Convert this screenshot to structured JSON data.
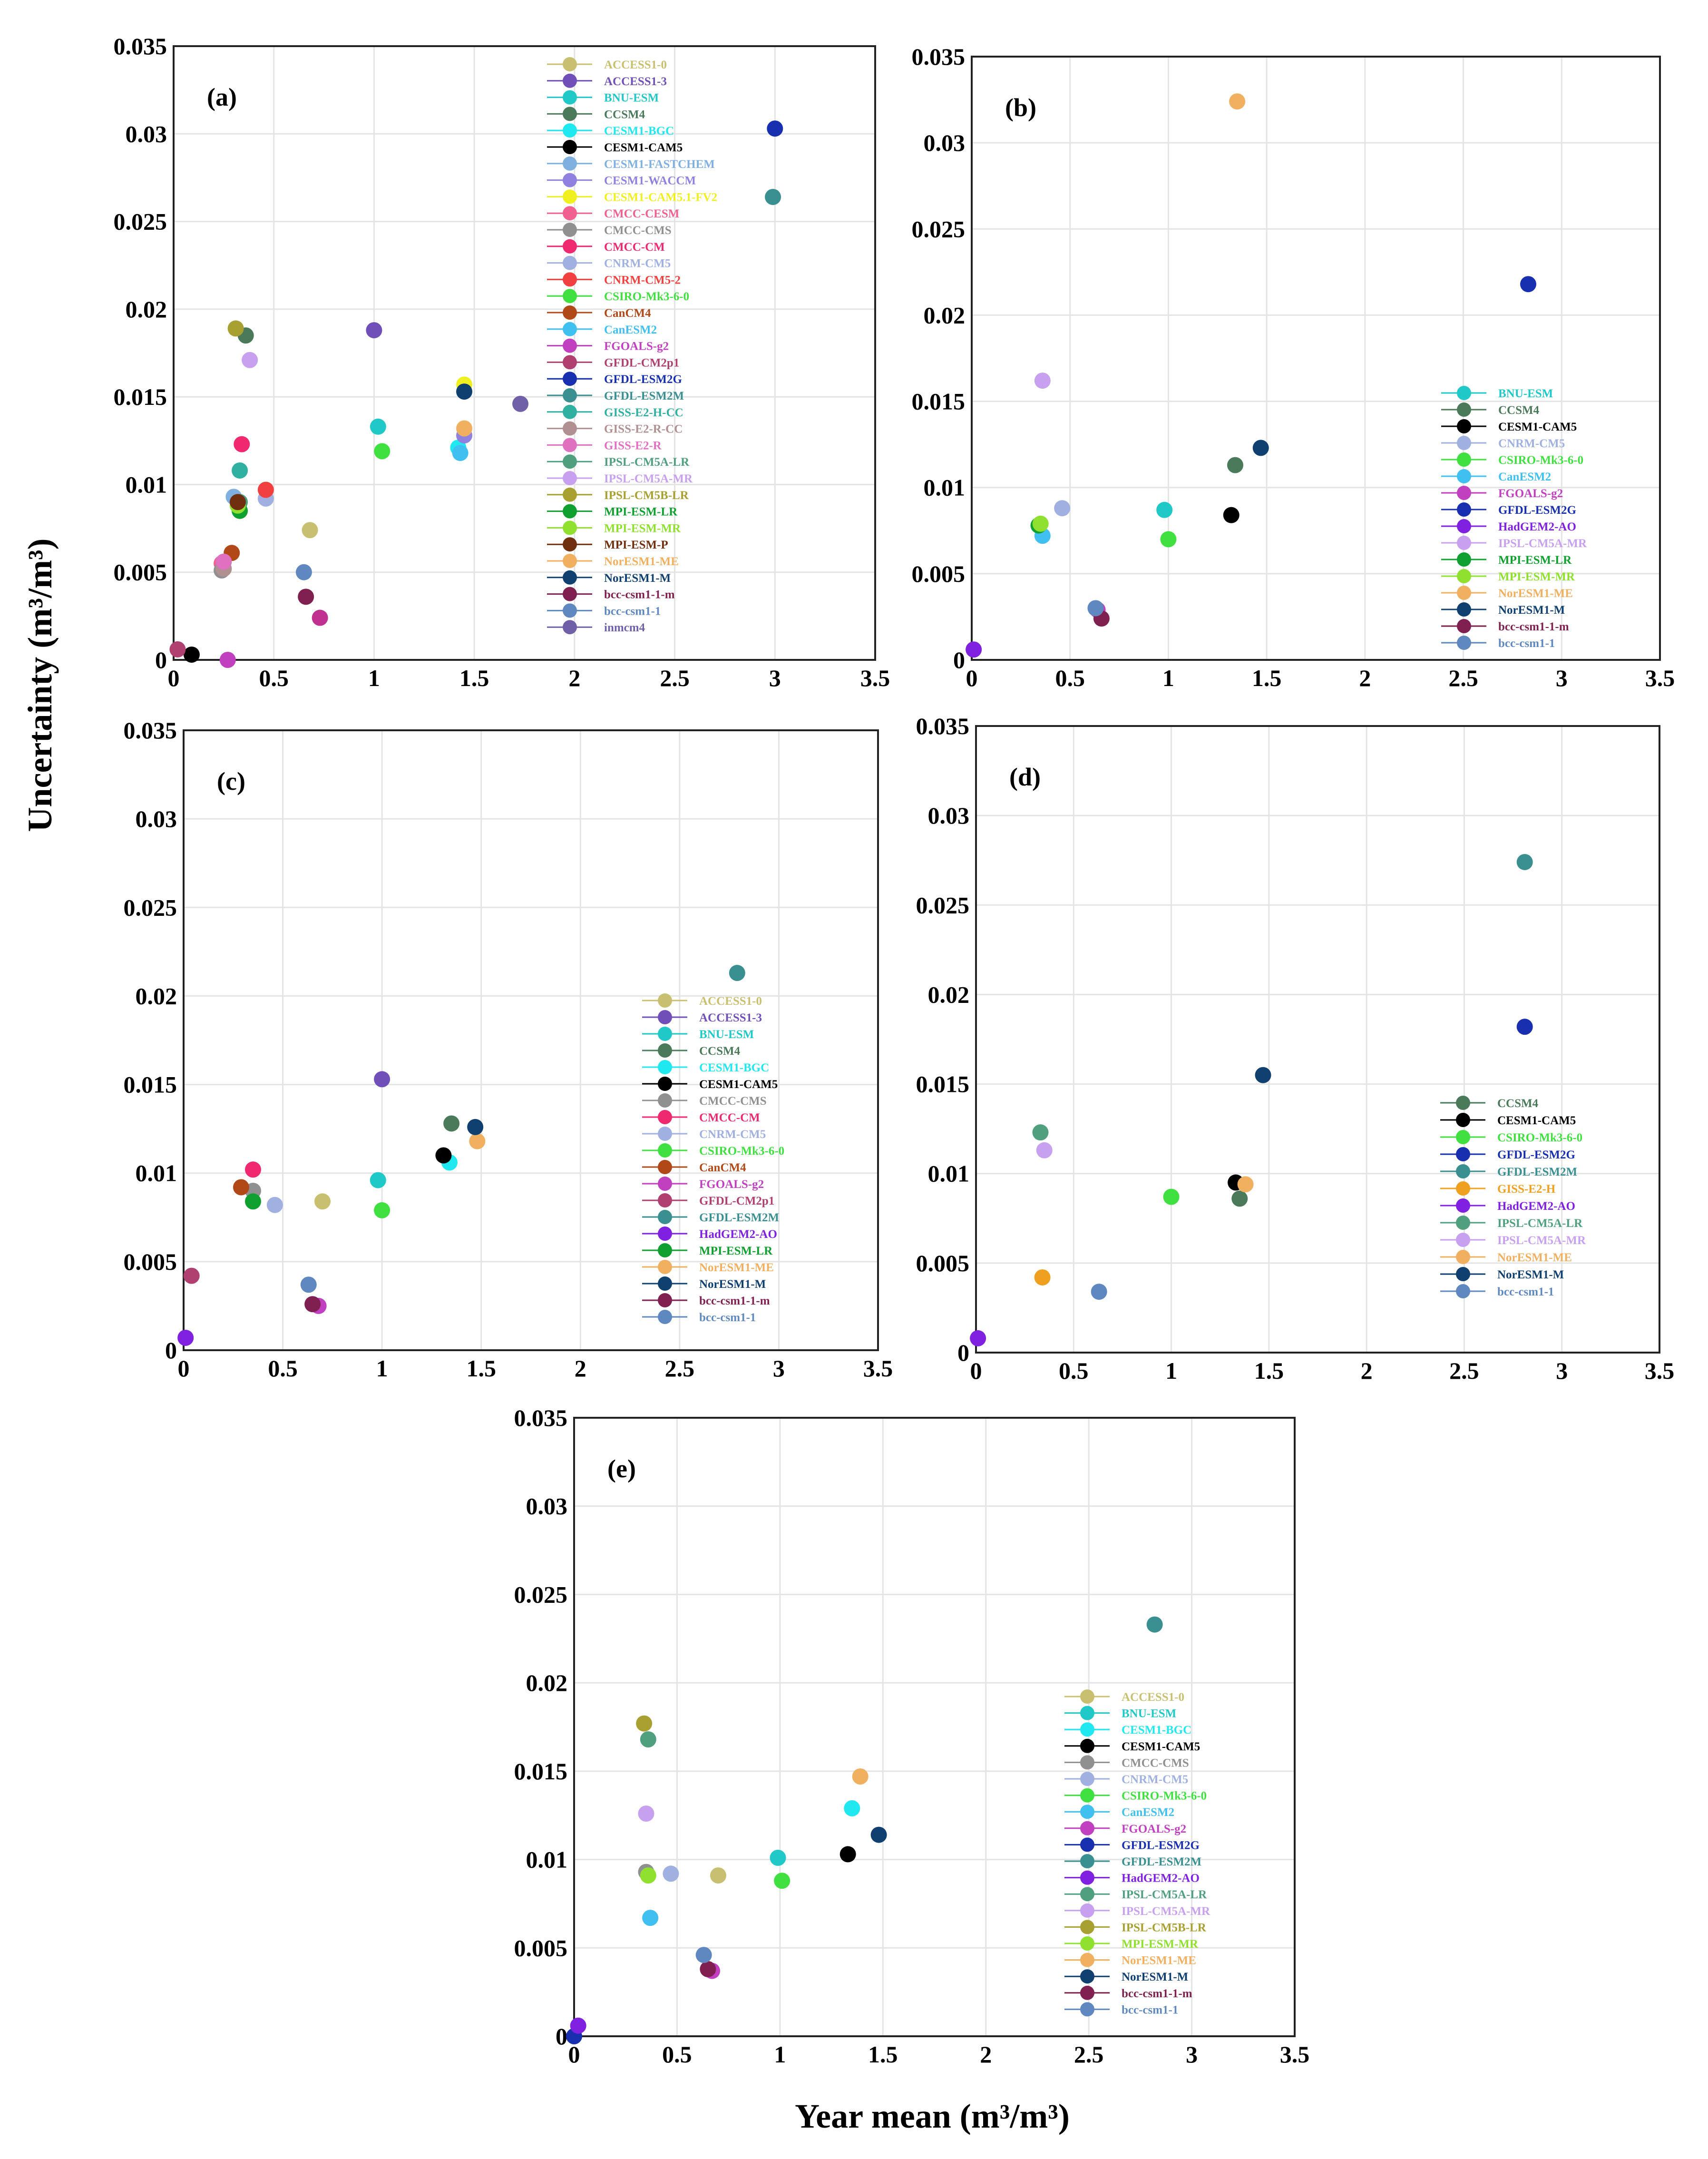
{
  "figure": {
    "ylabel": "Uncertainty (m³/m³)",
    "xlabel": "Year mean (m³/m³)"
  },
  "chart_data": [
    {
      "type": "scatter",
      "panel_label": "(a)",
      "xlim": [
        0,
        3.5
      ],
      "ylim": [
        0,
        0.035
      ],
      "xticks": [
        "0",
        "0.5",
        "1",
        "1.5",
        "2",
        "2.5",
        "3",
        "3.5"
      ],
      "yticks": [
        "0",
        "0.005",
        "0.01",
        "0.015",
        "0.02",
        "0.025",
        "0.03",
        "0.035"
      ],
      "grid": true,
      "legend_position": "top-right",
      "series": [
        {
          "name": "ACCESS1-0",
          "color": "#c8c070",
          "x": 0.68,
          "y": 0.0074
        },
        {
          "name": "ACCESS1-3",
          "color": "#7050b8",
          "x": 1.0,
          "y": 0.0188
        },
        {
          "name": "BNU-ESM",
          "color": "#20c8c8",
          "x": 1.02,
          "y": 0.0133
        },
        {
          "name": "CCSM4",
          "color": "#4a7a5a",
          "x": 0.36,
          "y": 0.0185
        },
        {
          "name": "CESM1-BGC",
          "color": "#20e8f0",
          "x": 1.42,
          "y": 0.0121
        },
        {
          "name": "CESM1-CAM5",
          "color": "#000000",
          "x": 0.09,
          "y": 0.0003
        },
        {
          "name": "CESM1-FASTCHEM",
          "color": "#80b0e0",
          "x": 0.3,
          "y": 0.0093
        },
        {
          "name": "CESM1-WACCM",
          "color": "#9080e0",
          "x": 1.45,
          "y": 0.0128
        },
        {
          "name": "CESM1-CAM5.1-FV2",
          "color": "#f0f020",
          "x": 1.45,
          "y": 0.0157
        },
        {
          "name": "CMCC-CESM",
          "color": "#f06090",
          "x": 0.24,
          "y": 0.0055
        },
        {
          "name": "CMCC-CMS",
          "color": "#909090",
          "x": 0.24,
          "y": 0.0051
        },
        {
          "name": "CMCC-CM",
          "color": "#f02870",
          "x": 0.34,
          "y": 0.0123
        },
        {
          "name": "CNRM-CM5",
          "color": "#a0b0e0",
          "x": 0.46,
          "y": 0.0092
        },
        {
          "name": "CNRM-CM5-2",
          "color": "#f04040",
          "x": 0.46,
          "y": 0.0097
        },
        {
          "name": "CSIRO-Mk3-6-0",
          "color": "#40e040",
          "x": 1.04,
          "y": 0.0119
        },
        {
          "name": "CanCM4",
          "color": "#b04818",
          "x": 0.29,
          "y": 0.0061
        },
        {
          "name": "CanESM2",
          "color": "#40c0f0",
          "x": 1.43,
          "y": 0.0118
        },
        {
          "name": "FGOALS-g2",
          "color": "#c040c0",
          "x": 0.27,
          "y": 0.0
        },
        {
          "name": "GFDL-CM2p1",
          "color": "#b04070",
          "x": 0.02,
          "y": 0.0006
        },
        {
          "name": "GFDL-ESM2G",
          "color": "#1830b0",
          "x": 3.0,
          "y": 0.0303
        },
        {
          "name": "GFDL-ESM2M",
          "color": "#3a9090",
          "x": 2.99,
          "y": 0.0264
        },
        {
          "name": "GISS-E2-H-CC",
          "color": "#30b0a0",
          "x": 0.33,
          "y": 0.0108
        },
        {
          "name": "GISS-E2-R-CC",
          "color": "#b09090",
          "x": 0.25,
          "y": 0.0052
        },
        {
          "name": "GISS-E2-R",
          "color": "#e070c0",
          "x": 0.25,
          "y": 0.0056
        },
        {
          "name": "IPSL-CM5A-LR",
          "color": "#50a080",
          "x": 0.33,
          "y": 0.009
        },
        {
          "name": "IPSL-CM5A-MR",
          "color": "#c8a0f0",
          "x": 0.38,
          "y": 0.0171
        },
        {
          "name": "IPSL-CM5B-LR",
          "color": "#a8a030",
          "x": 0.31,
          "y": 0.0189
        },
        {
          "name": "MPI-ESM-LR",
          "color": "#10a030",
          "x": 0.33,
          "y": 0.0085
        },
        {
          "name": "MPI-ESM-MR",
          "color": "#90e030",
          "x": 0.32,
          "y": 0.0088
        },
        {
          "name": "MPI-ESM-P",
          "color": "#703010",
          "x": 0.32,
          "y": 0.009
        },
        {
          "name": "NorESM1-ME",
          "color": "#f0b060",
          "x": 1.45,
          "y": 0.0132
        },
        {
          "name": "NorESM1-M",
          "color": "#104070",
          "x": 1.45,
          "y": 0.0153
        },
        {
          "name": "bcc-csm1-1-m",
          "color": "#802050",
          "x": 0.66,
          "y": 0.0036
        },
        {
          "name": "bcc-csm1-1",
          "color": "#6088c0",
          "x": 0.65,
          "y": 0.005
        },
        {
          "name": "inmcm4",
          "color": "#7060a8",
          "x": 1.73,
          "y": 0.0146
        },
        {
          "name": "(unlabeled)",
          "color": "#c03090",
          "x": 0.73,
          "y": 0.0024
        }
      ]
    },
    {
      "type": "scatter",
      "panel_label": "(b)",
      "xlim": [
        0,
        3.5
      ],
      "ylim": [
        0,
        0.035
      ],
      "xticks": [
        "0",
        "0.5",
        "1",
        "1.5",
        "2",
        "2.5",
        "3",
        "3.5"
      ],
      "yticks": [
        "0",
        "0.005",
        "0.01",
        "0.015",
        "0.02",
        "0.025",
        "0.03",
        "0.035"
      ],
      "grid": true,
      "legend_position": "right",
      "series": [
        {
          "name": "BNU-ESM",
          "color": "#20c8c8",
          "x": 0.98,
          "y": 0.0087
        },
        {
          "name": "CCSM4",
          "color": "#4a7a5a",
          "x": 1.34,
          "y": 0.0113
        },
        {
          "name": "CESM1-CAM5",
          "color": "#000000",
          "x": 1.32,
          "y": 0.0084
        },
        {
          "name": "CNRM-CM5",
          "color": "#a0b0e0",
          "x": 0.46,
          "y": 0.0088
        },
        {
          "name": "CSIRO-Mk3-6-0",
          "color": "#40e040",
          "x": 1.0,
          "y": 0.007
        },
        {
          "name": "CanESM2",
          "color": "#40c0f0",
          "x": 0.36,
          "y": 0.0072
        },
        {
          "name": "FGOALS-g2",
          "color": "#c040c0",
          "x": 0.64,
          "y": 0.0029
        },
        {
          "name": "GFDL-ESM2G",
          "color": "#1830b0",
          "x": 2.83,
          "y": 0.0218
        },
        {
          "name": "HadGEM2-AO",
          "color": "#8020e0",
          "x": 0.01,
          "y": 0.0006
        },
        {
          "name": "IPSL-CM5A-MR",
          "color": "#c8a0f0",
          "x": 0.36,
          "y": 0.0162
        },
        {
          "name": "MPI-ESM-LR",
          "color": "#10a030",
          "x": 0.34,
          "y": 0.0078
        },
        {
          "name": "MPI-ESM-MR",
          "color": "#90e030",
          "x": 0.35,
          "y": 0.0079
        },
        {
          "name": "NorESM1-ME",
          "color": "#f0b060",
          "x": 1.35,
          "y": 0.0324
        },
        {
          "name": "NorESM1-M",
          "color": "#104070",
          "x": 1.47,
          "y": 0.0123
        },
        {
          "name": "bcc-csm1-1-m",
          "color": "#802050",
          "x": 0.66,
          "y": 0.0024
        },
        {
          "name": "bcc-csm1-1",
          "color": "#6088c0",
          "x": 0.63,
          "y": 0.003
        }
      ]
    },
    {
      "type": "scatter",
      "panel_label": "(c)",
      "xlim": [
        0,
        3.5
      ],
      "ylim": [
        0,
        0.035
      ],
      "xticks": [
        "0",
        "0.5",
        "1",
        "1.5",
        "2",
        "2.5",
        "3",
        "3.5"
      ],
      "yticks": [
        "0",
        "0.005",
        "0.01",
        "0.015",
        "0.02",
        "0.025",
        "0.03",
        "0.035"
      ],
      "grid": true,
      "legend_position": "right",
      "series": [
        {
          "name": "ACCESS1-0",
          "color": "#c8c070",
          "x": 0.7,
          "y": 0.0084
        },
        {
          "name": "ACCESS1-3",
          "color": "#7050b8",
          "x": 1.0,
          "y": 0.0153
        },
        {
          "name": "BNU-ESM",
          "color": "#20c8c8",
          "x": 0.98,
          "y": 0.0096
        },
        {
          "name": "CCSM4",
          "color": "#4a7a5a",
          "x": 1.35,
          "y": 0.0128
        },
        {
          "name": "CESM1-BGC",
          "color": "#20e8f0",
          "x": 1.34,
          "y": 0.0106
        },
        {
          "name": "CESM1-CAM5",
          "color": "#000000",
          "x": 1.31,
          "y": 0.011
        },
        {
          "name": "CMCC-CMS",
          "color": "#909090",
          "x": 0.35,
          "y": 0.009
        },
        {
          "name": "CMCC-CM",
          "color": "#f02870",
          "x": 0.35,
          "y": 0.0102
        },
        {
          "name": "CNRM-CM5",
          "color": "#a0b0e0",
          "x": 0.46,
          "y": 0.0082
        },
        {
          "name": "CSIRO-Mk3-6-0",
          "color": "#40e040",
          "x": 1.0,
          "y": 0.0079
        },
        {
          "name": "CanCM4",
          "color": "#b04818",
          "x": 0.29,
          "y": 0.0092
        },
        {
          "name": "FGOALS-g2",
          "color": "#c040c0",
          "x": 0.68,
          "y": 0.0025
        },
        {
          "name": "GFDL-CM2p1",
          "color": "#b04070",
          "x": 0.04,
          "y": 0.0042
        },
        {
          "name": "GFDL-ESM2M",
          "color": "#3a9090",
          "x": 2.79,
          "y": 0.0213
        },
        {
          "name": "HadGEM2-AO",
          "color": "#8020e0",
          "x": 0.01,
          "y": 0.0007
        },
        {
          "name": "MPI-ESM-LR",
          "color": "#10a030",
          "x": 0.35,
          "y": 0.0084
        },
        {
          "name": "NorESM1-ME",
          "color": "#f0b060",
          "x": 1.48,
          "y": 0.0118
        },
        {
          "name": "NorESM1-M",
          "color": "#104070",
          "x": 1.47,
          "y": 0.0126
        },
        {
          "name": "bcc-csm1-1-m",
          "color": "#802050",
          "x": 0.65,
          "y": 0.0026
        },
        {
          "name": "bcc-csm1-1",
          "color": "#6088c0",
          "x": 0.63,
          "y": 0.0037
        }
      ]
    },
    {
      "type": "scatter",
      "panel_label": "(d)",
      "xlim": [
        0,
        3.5
      ],
      "ylim": [
        0,
        0.035
      ],
      "xticks": [
        "0",
        "0.5",
        "1",
        "1.5",
        "2",
        "2.5",
        "3",
        "3.5"
      ],
      "yticks": [
        "0",
        "0.005",
        "0.01",
        "0.015",
        "0.02",
        "0.025",
        "0.03",
        "0.035"
      ],
      "grid": true,
      "legend_position": "right",
      "series": [
        {
          "name": "CCSM4",
          "color": "#4a7a5a",
          "x": 1.35,
          "y": 0.0086
        },
        {
          "name": "CESM1-CAM5",
          "color": "#000000",
          "x": 1.33,
          "y": 0.0095
        },
        {
          "name": "CSIRO-Mk3-6-0",
          "color": "#40e040",
          "x": 1.0,
          "y": 0.0087
        },
        {
          "name": "GFDL-ESM2G",
          "color": "#1830b0",
          "x": 2.81,
          "y": 0.0182
        },
        {
          "name": "GFDL-ESM2M",
          "color": "#3a9090",
          "x": 2.81,
          "y": 0.0274
        },
        {
          "name": "GISS-E2-H",
          "color": "#f0a020",
          "x": 0.34,
          "y": 0.0042
        },
        {
          "name": "HadGEM2-AO",
          "color": "#8020e0",
          "x": 0.01,
          "y": 0.0008
        },
        {
          "name": "IPSL-CM5A-LR",
          "color": "#50a080",
          "x": 0.33,
          "y": 0.0123
        },
        {
          "name": "IPSL-CM5A-MR",
          "color": "#c8a0f0",
          "x": 0.35,
          "y": 0.0113
        },
        {
          "name": "NorESM1-ME",
          "color": "#f0b060",
          "x": 1.38,
          "y": 0.0094
        },
        {
          "name": "NorESM1-M",
          "color": "#104070",
          "x": 1.47,
          "y": 0.0155
        },
        {
          "name": "bcc-csm1-1",
          "color": "#6088c0",
          "x": 0.63,
          "y": 0.0034
        }
      ]
    },
    {
      "type": "scatter",
      "panel_label": "(e)",
      "xlim": [
        0,
        3.5
      ],
      "ylim": [
        0,
        0.035
      ],
      "xticks": [
        "0",
        "0.5",
        "1",
        "1.5",
        "2",
        "2.5",
        "3",
        "3.5"
      ],
      "yticks": [
        "0",
        "0.005",
        "0.01",
        "0.015",
        "0.02",
        "0.025",
        "0.03",
        "0.035"
      ],
      "grid": true,
      "legend_position": "right",
      "series": [
        {
          "name": "ACCESS1-0",
          "color": "#c8c070",
          "x": 0.7,
          "y": 0.0091
        },
        {
          "name": "BNU-ESM",
          "color": "#20c8c8",
          "x": 0.99,
          "y": 0.0101
        },
        {
          "name": "CESM1-BGC",
          "color": "#20e8f0",
          "x": 1.35,
          "y": 0.0129
        },
        {
          "name": "CESM1-CAM5",
          "color": "#000000",
          "x": 1.33,
          "y": 0.0103
        },
        {
          "name": "CMCC-CMS",
          "color": "#909090",
          "x": 0.35,
          "y": 0.0093
        },
        {
          "name": "CNRM-CM5",
          "color": "#a0b0e0",
          "x": 0.47,
          "y": 0.0092
        },
        {
          "name": "CSIRO-Mk3-6-0",
          "color": "#40e040",
          "x": 1.01,
          "y": 0.0088
        },
        {
          "name": "CanESM2",
          "color": "#40c0f0",
          "x": 0.37,
          "y": 0.0067
        },
        {
          "name": "FGOALS-g2",
          "color": "#c040c0",
          "x": 0.67,
          "y": 0.0037
        },
        {
          "name": "GFDL-ESM2G",
          "color": "#1830b0",
          "x": 0.0,
          "y": 0.0
        },
        {
          "name": "GFDL-ESM2M",
          "color": "#3a9090",
          "x": 2.82,
          "y": 0.0233
        },
        {
          "name": "HadGEM2-AO",
          "color": "#8020e0",
          "x": 0.02,
          "y": 0.0006
        },
        {
          "name": "IPSL-CM5A-LR",
          "color": "#50a080",
          "x": 0.36,
          "y": 0.0168
        },
        {
          "name": "IPSL-CM5A-MR",
          "color": "#c8a0f0",
          "x": 0.35,
          "y": 0.0126
        },
        {
          "name": "IPSL-CM5B-LR",
          "color": "#a8a030",
          "x": 0.34,
          "y": 0.0177
        },
        {
          "name": "MPI-ESM-MR",
          "color": "#90e030",
          "x": 0.36,
          "y": 0.0091
        },
        {
          "name": "NorESM1-ME",
          "color": "#f0b060",
          "x": 1.39,
          "y": 0.0147
        },
        {
          "name": "NorESM1-M",
          "color": "#104070",
          "x": 1.48,
          "y": 0.0114
        },
        {
          "name": "bcc-csm1-1-m",
          "color": "#802050",
          "x": 0.65,
          "y": 0.0038
        },
        {
          "name": "bcc-csm1-1",
          "color": "#6088c0",
          "x": 0.63,
          "y": 0.0046
        }
      ]
    }
  ]
}
